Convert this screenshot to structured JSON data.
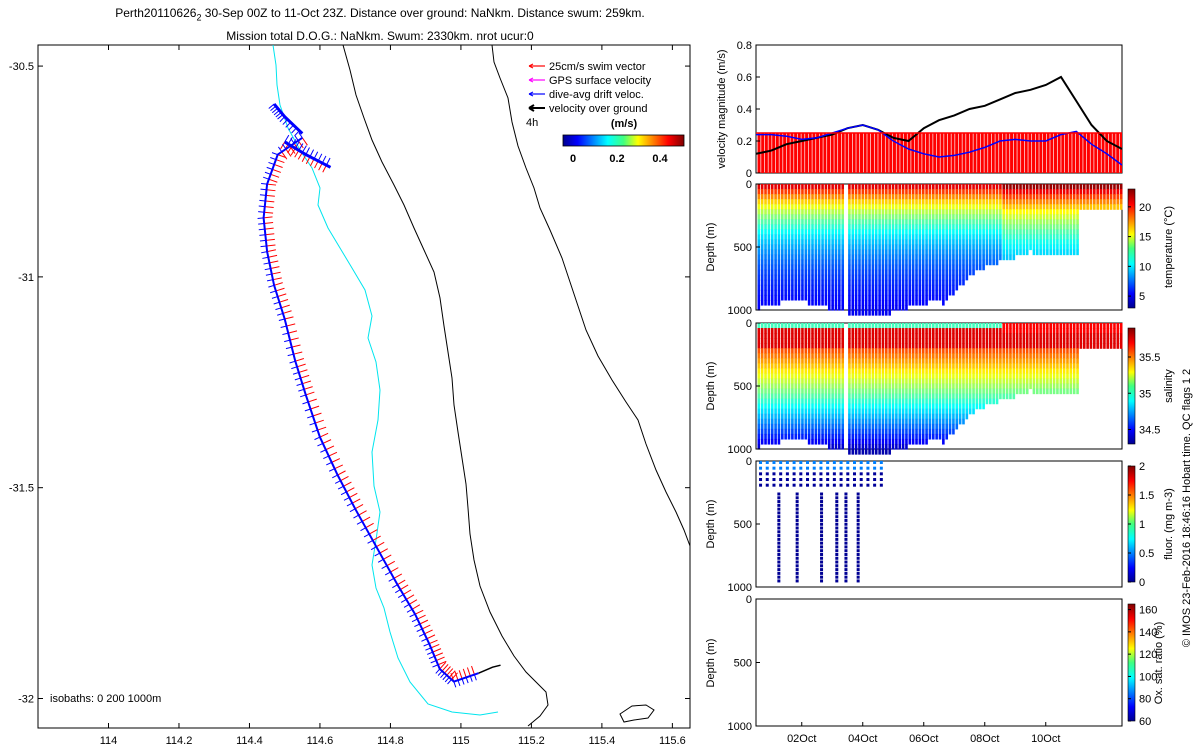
{
  "header": {
    "title_pre": "Perth20110626",
    "title_sub": "2",
    "title_post": " 30-Sep 00Z to 11-Oct 23Z. Distance over ground: NaNkm. Distance swum: 259km.",
    "subtitle": "Mission total D.O.G.: NaNkm. Swum: 2330km. nrot ucur:0"
  },
  "colors": {
    "swim": "#ff0000",
    "gps": "#ff00ff",
    "drift": "#0000ff",
    "ground": "#000000",
    "coast": "#000000",
    "isobath200": "#00e5ee",
    "isobath1000": "#000000"
  },
  "chart_data": [
    {
      "type": "map",
      "xticks": [
        "114",
        "114.2",
        "114.4",
        "114.6",
        "114.8",
        "115",
        "115.2",
        "115.4",
        "115.6"
      ],
      "yticks": [
        "-30.5",
        "-31",
        "-31.5",
        "-32"
      ],
      "xlim": [
        113.8,
        115.65
      ],
      "ylim": [
        -32.07,
        -30.45
      ],
      "legend": [
        {
          "label": "25cm/s swim vector",
          "color": "#ff0000"
        },
        {
          "label": "GPS surface velocity",
          "color": "#ff00ff"
        },
        {
          "label": "dive-avg drift veloc.",
          "color": "#0000ff"
        },
        {
          "label": "velocity over ground",
          "color": "#000000"
        }
      ],
      "interval_label": "4h",
      "colorbar_title": "(m/s)",
      "colorbar_ticks": [
        "0",
        "0.2",
        "0.4"
      ],
      "isobaths_label": "isobaths: 0   200  1000m",
      "track": [
        [
          114.55,
          -30.67
        ],
        [
          114.48,
          -30.71
        ],
        [
          114.45,
          -30.78
        ],
        [
          114.44,
          -30.86
        ],
        [
          114.45,
          -30.94
        ],
        [
          114.47,
          -31.02
        ],
        [
          114.5,
          -31.1
        ],
        [
          114.53,
          -31.2
        ],
        [
          114.56,
          -31.28
        ],
        [
          114.6,
          -31.38
        ],
        [
          114.65,
          -31.47
        ],
        [
          114.7,
          -31.55
        ],
        [
          114.76,
          -31.64
        ],
        [
          114.82,
          -31.73
        ],
        [
          114.87,
          -31.8
        ],
        [
          114.91,
          -31.87
        ],
        [
          114.94,
          -31.93
        ],
        [
          114.98,
          -31.96
        ],
        [
          115.05,
          -31.94
        ]
      ],
      "bow": [
        [
          114.5,
          -30.68
        ],
        [
          114.56,
          -30.71
        ],
        [
          114.63,
          -30.74
        ]
      ],
      "bow_top": [
        [
          114.47,
          -30.59
        ],
        [
          114.5,
          -30.62
        ],
        [
          114.55,
          -30.66
        ]
      ]
    },
    {
      "type": "line",
      "ylabel": "velocity magnitude (m/s)",
      "ylim": [
        0,
        0.8
      ],
      "yticks": [
        "0",
        "0.2",
        "0.4",
        "0.6",
        "0.8"
      ],
      "x": [
        0,
        0.5,
        1,
        1.5,
        2,
        2.5,
        3,
        3.5,
        4,
        4.5,
        5,
        5.5,
        6,
        6.5,
        7,
        7.5,
        8,
        8.5,
        9,
        9.5,
        10,
        10.5,
        11,
        11.5,
        12
      ],
      "series": [
        {
          "color": "#000000",
          "values": [
            0.12,
            0.14,
            0.18,
            0.2,
            0.22,
            0.24,
            0.28,
            0.3,
            0.27,
            0.22,
            0.2,
            0.28,
            0.33,
            0.36,
            0.4,
            0.42,
            0.46,
            0.5,
            0.52,
            0.55,
            0.6,
            0.45,
            0.3,
            0.2,
            0.15
          ]
        },
        {
          "color": "#0000ff",
          "values": [
            0.24,
            0.24,
            0.23,
            0.21,
            0.22,
            0.25,
            0.28,
            0.3,
            0.27,
            0.2,
            0.15,
            0.12,
            0.1,
            0.11,
            0.13,
            0.16,
            0.2,
            0.21,
            0.2,
            0.2,
            0.24,
            0.26,
            0.18,
            0.12,
            0.05
          ]
        },
        {
          "color": "#ff0000",
          "values": [
            0.25,
            0.25,
            0.25,
            0.25,
            0.25,
            0.25,
            0.25,
            0.25,
            0.25,
            0.25,
            0.25,
            0.25,
            0.25,
            0.25,
            0.25,
            0.25,
            0.25,
            0.25,
            0.25,
            0.25,
            0.25,
            0.25,
            0.25,
            0.25,
            0.25
          ]
        }
      ]
    },
    {
      "type": "heatmap",
      "ylabel": "Depth (m)",
      "yticks": [
        "0",
        "500",
        "1000"
      ],
      "clabel": "temperature (°C)",
      "cticks": [
        "5",
        "10",
        "15",
        "20"
      ],
      "vmin": 3,
      "vmax": 23,
      "surface": 21,
      "bottom": 4
    },
    {
      "type": "heatmap",
      "ylabel": "Depth (m)",
      "yticks": [
        "0",
        "500",
        "1000"
      ],
      "clabel": "salinity",
      "cticks": [
        "34.5",
        "35",
        "35.5"
      ],
      "vmin": 34.3,
      "vmax": 35.9
    },
    {
      "type": "scatter",
      "ylabel": "Depth (m)",
      "yticks": [
        "0",
        "500",
        "1000"
      ],
      "clabel": "fluor. (mg m-3)",
      "cticks": [
        "0",
        "0.5",
        "1",
        "1.5",
        "2"
      ],
      "vmin": 0,
      "vmax": 2,
      "profiles_x": [
        0.7,
        1.3,
        2.1,
        2.6,
        2.9,
        3.3
      ]
    },
    {
      "type": "heatmap",
      "ylabel": "Depth (m)",
      "yticks": [
        "0",
        "500",
        "1000"
      ],
      "xticks": [
        "02Oct",
        "04Oct",
        "06Oct",
        "08Oct",
        "10Oct"
      ],
      "clabel": "Ox. sat. ratio (%)",
      "cticks": [
        "60",
        "80",
        "100",
        "120",
        "140",
        "160"
      ]
    }
  ],
  "footer": {
    "credit": "© IMOS 23-Feb-2016 18:46:16 Hobart time. QC flags 1  2"
  }
}
